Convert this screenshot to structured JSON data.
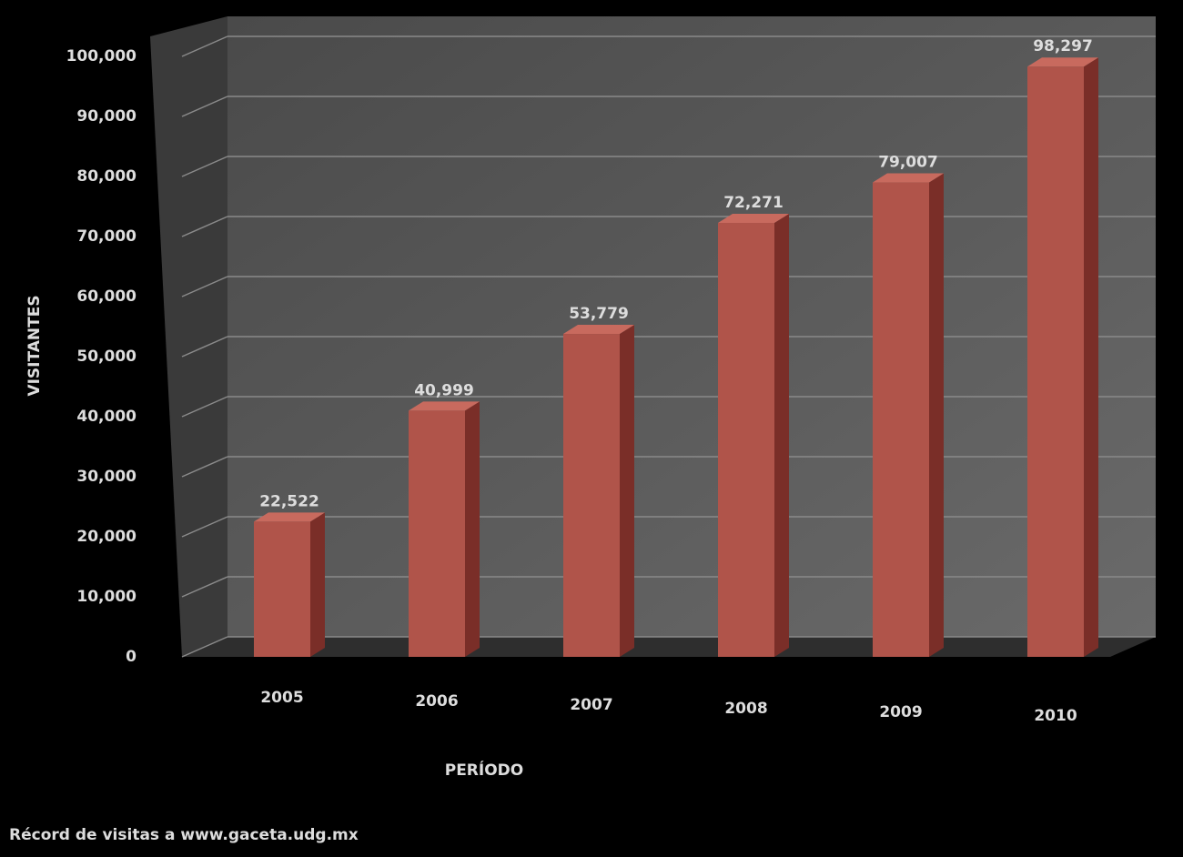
{
  "chart_data": {
    "type": "bar",
    "title": "Récord de visitas a www.gaceta.udg.mx",
    "x_label": "PERÍODO",
    "y_label": "VISITANTES",
    "categories": [
      "2005",
      "2006",
      "2007",
      "2008",
      "2009",
      "2010"
    ],
    "values": [
      22522,
      40999,
      53779,
      72271,
      79007,
      98297
    ],
    "value_labels": [
      "22,522",
      "40,999",
      "53,779",
      "72,271",
      "79,007",
      "98,297"
    ],
    "color": "#b0544a",
    "ylim": [
      0,
      100000
    ],
    "yticks": [
      0,
      {
        "value": 10000,
        "label": "10,000"
      },
      {
        "value": 20000,
        "label": "20,000"
      },
      {
        "value": 30000,
        "label": "30,000"
      },
      {
        "value": 40000,
        "label": "40,000"
      },
      {
        "value": 50000,
        "label": "50,000"
      },
      {
        "value": 60000,
        "label": "60,000"
      },
      {
        "value": 70000,
        "label": "70,000"
      },
      {
        "value": 80000,
        "label": "80,000"
      },
      {
        "value": 90000,
        "label": "90,000"
      },
      {
        "value": 100000,
        "label": "100,000"
      }
    ],
    "grid": true
  }
}
